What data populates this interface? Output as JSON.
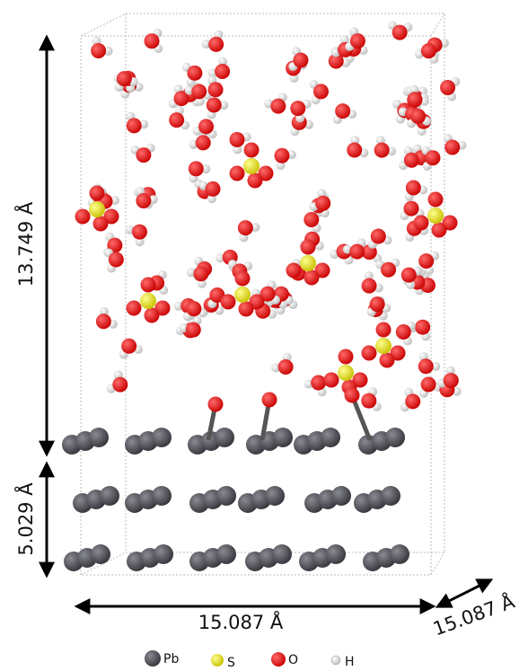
{
  "dimensions": {
    "height_top": "13.749 Å",
    "height_bottom": "5.029 Å",
    "width": "15.087 Å",
    "depth": "15.087 Å"
  },
  "legend": [
    {
      "label": "Pb"
    },
    {
      "label": "S"
    },
    {
      "label": "O"
    },
    {
      "label": "H"
    }
  ]
}
